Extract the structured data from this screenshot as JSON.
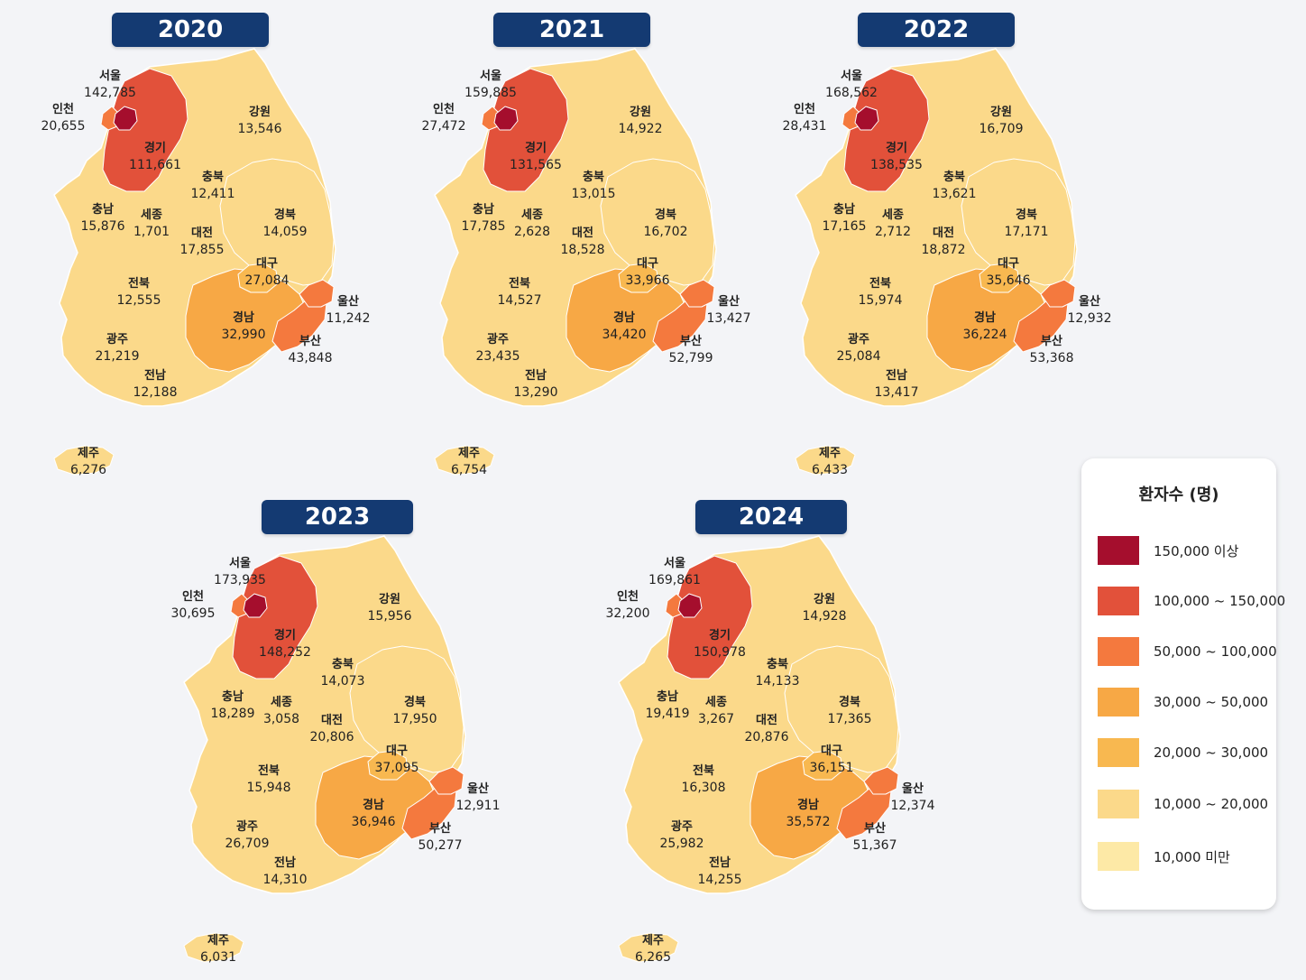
{
  "maps": [
    {
      "year": "2020",
      "regions": {
        "seoul": "142,785",
        "incheon": "20,655",
        "gyeonggi": "111,661",
        "gangwon": "13,546",
        "chungbuk": "12,411",
        "chungnam": "15,876",
        "sejong": "1,701",
        "daejeon": "17,855",
        "gyeongbuk": "14,059",
        "daegu": "27,084",
        "jeonbuk": "12,555",
        "ulsan": "11,242",
        "gyeongnam": "32,990",
        "gwangju": "21,219",
        "busan": "43,848",
        "jeonnam": "12,188",
        "jeju": "6,276"
      }
    },
    {
      "year": "2021",
      "regions": {
        "seoul": "159,885",
        "incheon": "27,472",
        "gyeonggi": "131,565",
        "gangwon": "14,922",
        "chungbuk": "13,015",
        "chungnam": "17,785",
        "sejong": "2,628",
        "daejeon": "18,528",
        "gyeongbuk": "16,702",
        "daegu": "33,966",
        "jeonbuk": "14,527",
        "ulsan": "13,427",
        "gyeongnam": "34,420",
        "gwangju": "23,435",
        "busan": "52,799",
        "jeonnam": "13,290",
        "jeju": "6,754"
      }
    },
    {
      "year": "2022",
      "regions": {
        "seoul": "168,562",
        "incheon": "28,431",
        "gyeonggi": "138,535",
        "gangwon": "16,709",
        "chungbuk": "13,621",
        "chungnam": "17,165",
        "sejong": "2,712",
        "daejeon": "18,872",
        "gyeongbuk": "17,171",
        "daegu": "35,646",
        "jeonbuk": "15,974",
        "ulsan": "12,932",
        "gyeongnam": "36,224",
        "gwangju": "25,084",
        "busan": "53,368",
        "jeonnam": "13,417",
        "jeju": "6,433"
      }
    },
    {
      "year": "2023",
      "regions": {
        "seoul": "173,935",
        "incheon": "30,695",
        "gyeonggi": "148,252",
        "gangwon": "15,956",
        "chungbuk": "14,073",
        "chungnam": "18,289",
        "sejong": "3,058",
        "daejeon": "20,806",
        "gyeongbuk": "17,950",
        "daegu": "37,095",
        "jeonbuk": "15,948",
        "ulsan": "12,911",
        "gyeongnam": "36,946",
        "gwangju": "26,709",
        "busan": "50,277",
        "jeonnam": "14,310",
        "jeju": "6,031"
      }
    },
    {
      "year": "2024",
      "regions": {
        "seoul": "169,861",
        "incheon": "32,200",
        "gyeonggi": "150,978",
        "gangwon": "14,928",
        "chungbuk": "14,133",
        "chungnam": "19,419",
        "sejong": "3,267",
        "daejeon": "20,876",
        "gyeongbuk": "17,365",
        "daegu": "36,151",
        "jeonbuk": "16,308",
        "ulsan": "12,374",
        "gyeongnam": "35,572",
        "gwangju": "25,982",
        "busan": "51,367",
        "jeonnam": "14,255",
        "jeju": "6,265"
      }
    }
  ],
  "region_names": {
    "seoul": "서울",
    "incheon": "인천",
    "gyeonggi": "경기",
    "gangwon": "강원",
    "chungbuk": "충북",
    "chungnam": "충남",
    "sejong": "세종",
    "daejeon": "대전",
    "gyeongbuk": "경북",
    "daegu": "대구",
    "jeonbuk": "전북",
    "ulsan": "울산",
    "gyeongnam": "경남",
    "gwangju": "광주",
    "busan": "부산",
    "jeonnam": "전남",
    "jeju": "제주"
  },
  "legend": {
    "title": "환자수 (명)",
    "items": [
      {
        "label": "150,000 이상",
        "color": "#a50e2d"
      },
      {
        "label": "100,000 ~ 150,000",
        "color": "#e2513a"
      },
      {
        "label": "50,000 ~ 100,000",
        "color": "#f4793e"
      },
      {
        "label": "30,000  ~  50,000",
        "color": "#f7a845"
      },
      {
        "label": "20,000  ~  30,000",
        "color": "#f8b850"
      },
      {
        "label": "10,000  ~  20,000",
        "color": "#fbd98a"
      },
      {
        "label": "10,000 미만",
        "color": "#fde9a6"
      }
    ]
  }
}
